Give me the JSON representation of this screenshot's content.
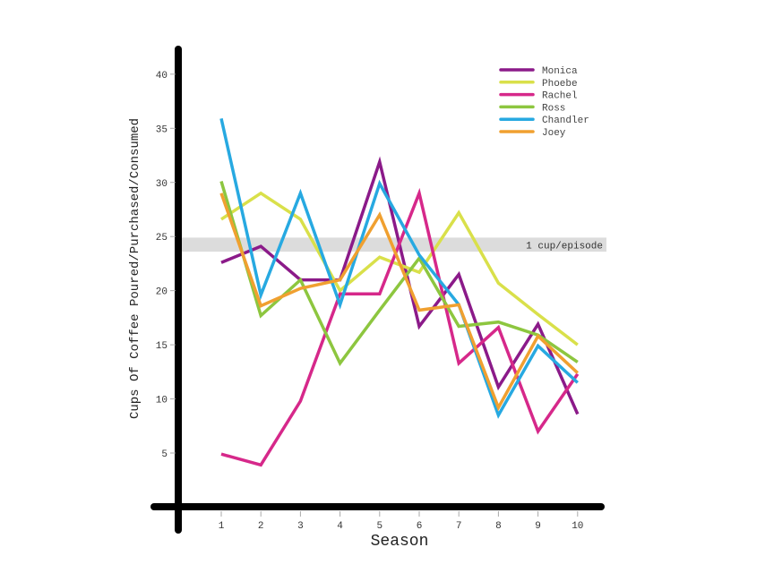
{
  "chart_data": {
    "type": "line",
    "title": "",
    "xlabel": "Season",
    "ylabel": "Cups Of Coffee Poured/Purchased/Consumed",
    "x": [
      1,
      2,
      3,
      4,
      5,
      6,
      7,
      8,
      9,
      10
    ],
    "x_ticks": [
      "1",
      "2",
      "3",
      "4",
      "5",
      "6",
      "7",
      "8",
      "9",
      "10"
    ],
    "y_ticks": [
      "5",
      "10",
      "15",
      "20",
      "25",
      "30",
      "35",
      "40"
    ],
    "ylim": [
      0,
      42
    ],
    "xlim": [
      0,
      10.6
    ],
    "grid": false,
    "legend_position": "top-right",
    "reference_band": {
      "label": "1 cup/episode",
      "from": 23.6,
      "to": 24.9,
      "color": "#dcdcdc"
    },
    "series": [
      {
        "name": "Monica",
        "color": "#8b1a89",
        "values": [
          22.6,
          24.1,
          21.0,
          21.0,
          31.9,
          16.7,
          21.5,
          11.1,
          16.9,
          8.6
        ]
      },
      {
        "name": "Phoebe",
        "color": "#d9e04a",
        "values": [
          26.6,
          29.0,
          26.6,
          20.0,
          23.1,
          21.7,
          27.2,
          20.7,
          17.8,
          15.0
        ]
      },
      {
        "name": "Rachel",
        "color": "#d6288a",
        "values": [
          4.9,
          3.9,
          9.8,
          19.7,
          19.7,
          29.0,
          13.3,
          16.6,
          7.0,
          12.3
        ]
      },
      {
        "name": "Ross",
        "color": "#8dc63f",
        "values": [
          30.1,
          17.7,
          21.0,
          13.3,
          18.2,
          23.0,
          16.7,
          17.1,
          15.9,
          13.4
        ]
      },
      {
        "name": "Chandler",
        "color": "#27a9e1",
        "values": [
          35.9,
          19.6,
          29.0,
          18.7,
          29.9,
          23.3,
          18.7,
          8.5,
          14.9,
          11.5
        ]
      },
      {
        "name": "Joey",
        "color": "#f0a030",
        "values": [
          29.0,
          18.6,
          20.2,
          21.0,
          27.0,
          18.2,
          18.7,
          9.2,
          15.8,
          12.4
        ]
      }
    ]
  }
}
